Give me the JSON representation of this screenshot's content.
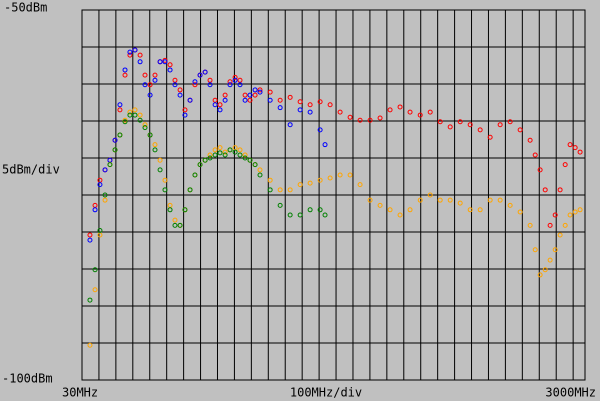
{
  "chart_data": {
    "type": "scatter",
    "top_label": "-50dBm",
    "middle_label": "5dBm/div",
    "bottom_label": "-100dBm",
    "x_start_label": "30MHz",
    "x_div_label": "100MHz/div",
    "x_end_label": "3000MHz",
    "xlim": [
      30,
      3000
    ],
    "ylim": [
      -100,
      -50
    ],
    "xticks": [
      30,
      130,
      230,
      330,
      430,
      530,
      630,
      730,
      830,
      930,
      1030,
      1130,
      1230,
      1330,
      1430,
      1530,
      1630,
      1730,
      1830,
      1930,
      2030,
      2130,
      2230,
      2330,
      2430,
      2530,
      2630,
      2730,
      2830,
      2930
    ],
    "yticks": [
      -100,
      -95,
      -90,
      -85,
      -80,
      -75,
      -70,
      -65,
      -60,
      -55,
      -50
    ],
    "grid": true,
    "series": [
      {
        "color": "#ff0000",
        "x": [
          77,
          107,
          136,
          166,
          195,
          225,
          254,
          284,
          313,
          343,
          373,
          402,
          432,
          461,
          491,
          520,
          550,
          579,
          609,
          638,
          668,
          697,
          727,
          757,
          786,
          816,
          845,
          875,
          904,
          934,
          963,
          993,
          1022,
          1052,
          1081,
          1141,
          1200,
          1259,
          1318,
          1377,
          1436,
          1495,
          1554,
          1613,
          1672,
          1731,
          1790,
          1849,
          1908,
          1967,
          2027,
          2086,
          2145,
          2204,
          2263,
          2322,
          2381,
          2440,
          2499,
          2558,
          2617,
          2676,
          2706,
          2735,
          2765,
          2794,
          2824,
          2853,
          2883,
          2912,
          2942,
          2971
        ],
        "values": [
          -80.4,
          -76.4,
          -73.0,
          -71.6,
          -70.3,
          -67.6,
          -63.5,
          -58.8,
          -56.1,
          -55.4,
          -56.1,
          -58.8,
          -60.1,
          -58.8,
          -57.0,
          -56.8,
          -57.4,
          -59.5,
          -60.8,
          -63.5,
          -62.2,
          -60.1,
          -58.8,
          -58.4,
          -59.5,
          -62.2,
          -62.8,
          -61.5,
          -59.7,
          -59.1,
          -59.5,
          -61.5,
          -62.2,
          -61.5,
          -60.8,
          -61.1,
          -62.2,
          -61.8,
          -62.4,
          -62.8,
          -62.4,
          -62.8,
          -63.8,
          -64.5,
          -64.9,
          -64.9,
          -64.6,
          -63.5,
          -63.1,
          -63.8,
          -64.2,
          -63.8,
          -65.1,
          -65.8,
          -65.1,
          -65.5,
          -66.2,
          -67.2,
          -65.5,
          -65.1,
          -66.2,
          -67.6,
          -69.6,
          -71.6,
          -74.3,
          -79.1,
          -77.7,
          -74.3,
          -70.9,
          -68.2,
          -68.6,
          -69.2
        ]
      },
      {
        "color": "#0000ff",
        "x": [
          77,
          107,
          136,
          166,
          195,
          225,
          254,
          284,
          313,
          343,
          373,
          402,
          432,
          461,
          491,
          520,
          550,
          579,
          609,
          638,
          668,
          697,
          727,
          757,
          786,
          816,
          845,
          875,
          904,
          934,
          963,
          993,
          1022,
          1052,
          1081,
          1141,
          1200,
          1259,
          1318,
          1377,
          1436,
          1465
        ],
        "values": [
          -81.1,
          -77.0,
          -73.6,
          -71.6,
          -70.3,
          -67.6,
          -62.8,
          -58.1,
          -55.7,
          -55.4,
          -57.0,
          -60.1,
          -61.5,
          -59.5,
          -57.0,
          -57.0,
          -58.1,
          -60.1,
          -61.5,
          -64.2,
          -62.2,
          -59.7,
          -58.8,
          -58.4,
          -60.1,
          -62.8,
          -63.5,
          -62.2,
          -60.1,
          -59.5,
          -60.1,
          -62.2,
          -61.5,
          -60.8,
          -61.1,
          -62.2,
          -63.2,
          -65.5,
          -63.5,
          -63.8,
          -66.2,
          -68.2
        ]
      },
      {
        "color": "#ffa500",
        "x": [
          77,
          107,
          136,
          166,
          195,
          225,
          254,
          284,
          313,
          343,
          373,
          402,
          432,
          461,
          491,
          520,
          550,
          579,
          609,
          638,
          668,
          697,
          727,
          757,
          786,
          816,
          845,
          875,
          904,
          934,
          963,
          993,
          1022,
          1052,
          1081,
          1141,
          1200,
          1259,
          1318,
          1377,
          1436,
          1495,
          1554,
          1613,
          1672,
          1731,
          1790,
          1849,
          1908,
          1967,
          2027,
          2086,
          2145,
          2204,
          2263,
          2322,
          2381,
          2440,
          2499,
          2558,
          2617,
          2676,
          2706,
          2735,
          2765,
          2794,
          2824,
          2853,
          2883,
          2912,
          2942,
          2971
        ],
        "values": [
          -95.3,
          -87.8,
          -80.4,
          -75.7,
          -70.9,
          -68.9,
          -66.9,
          -64.9,
          -63.8,
          -63.5,
          -64.2,
          -65.5,
          -66.9,
          -68.2,
          -70.3,
          -73.0,
          -76.4,
          -78.4,
          -79.1,
          -77.0,
          -74.3,
          -72.3,
          -70.9,
          -70.3,
          -69.6,
          -68.9,
          -68.6,
          -69.2,
          -68.9,
          -68.6,
          -68.9,
          -69.6,
          -70.3,
          -70.9,
          -71.6,
          -73.0,
          -74.3,
          -74.3,
          -73.6,
          -73.4,
          -73.0,
          -72.7,
          -72.3,
          -72.3,
          -73.6,
          -75.7,
          -76.4,
          -77.0,
          -77.7,
          -77.0,
          -75.7,
          -75.0,
          -75.7,
          -75.7,
          -76.1,
          -77.0,
          -77.0,
          -75.7,
          -75.7,
          -76.4,
          -77.3,
          -79.1,
          -82.4,
          -85.8,
          -85.1,
          -83.8,
          -82.4,
          -80.4,
          -79.1,
          -77.7,
          -77.3,
          -77.0
        ]
      },
      {
        "color": "#008000",
        "x": [
          77,
          107,
          136,
          166,
          195,
          225,
          254,
          284,
          313,
          343,
          373,
          402,
          432,
          461,
          491,
          520,
          550,
          579,
          609,
          638,
          668,
          697,
          727,
          757,
          786,
          816,
          845,
          875,
          904,
          934,
          963,
          993,
          1022,
          1052,
          1081,
          1141,
          1200,
          1259,
          1318,
          1377,
          1436,
          1465
        ],
        "values": [
          -89.2,
          -85.1,
          -79.8,
          -75.0,
          -70.9,
          -68.9,
          -66.9,
          -65.1,
          -64.2,
          -64.2,
          -64.9,
          -65.9,
          -66.9,
          -68.9,
          -71.6,
          -74.3,
          -77.0,
          -79.1,
          -79.1,
          -77.0,
          -74.3,
          -72.3,
          -70.9,
          -70.3,
          -70.0,
          -69.6,
          -69.3,
          -69.6,
          -68.9,
          -69.2,
          -69.6,
          -70.0,
          -70.3,
          -70.9,
          -72.3,
          -74.3,
          -76.4,
          -77.7,
          -77.7,
          -77.0,
          -77.0,
          -77.7
        ]
      }
    ]
  }
}
